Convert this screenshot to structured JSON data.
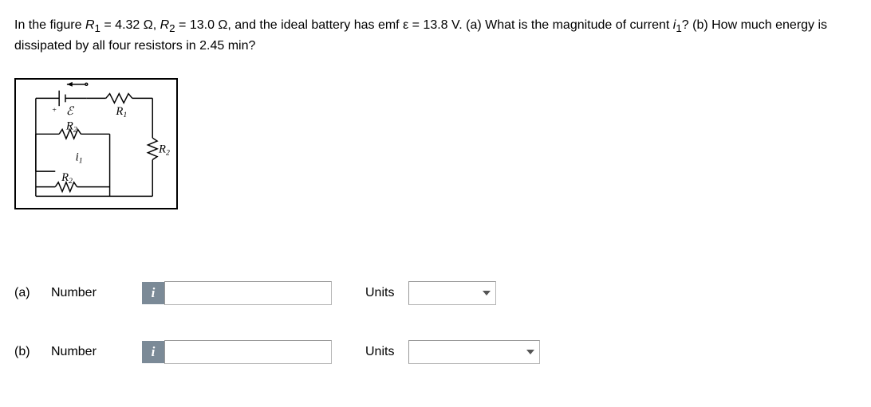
{
  "question": {
    "text_html": "In the figure <i>R</i><sub>1</sub> = 4.32 Ω, <i>R</i><sub>2</sub> = 13.0 Ω, and the ideal battery has emf ε = 13.8 V. (a) What is the magnitude of current <i>i</i><sub>1</sub>? (b) How much energy is dissipated by all four resistors in 2.45 min?"
  },
  "diagram": {
    "border_color": "#000000",
    "line_width": 1.5,
    "labels": {
      "emf": "ℰ",
      "R1": "R₁",
      "R2_top": "R₂",
      "R2_right": "R₂",
      "R2_bottom": "R₂",
      "i1": "i₁"
    },
    "font_family": "Times New Roman, serif",
    "font_style": "italic",
    "font_size": 15
  },
  "answers": {
    "a": {
      "part": "(a)",
      "label": "Number",
      "value": "",
      "units_label": "Units",
      "units_value": ""
    },
    "b": {
      "part": "(b)",
      "label": "Number",
      "value": "",
      "units_label": "Units",
      "units_value": ""
    }
  },
  "info_icon": "i"
}
